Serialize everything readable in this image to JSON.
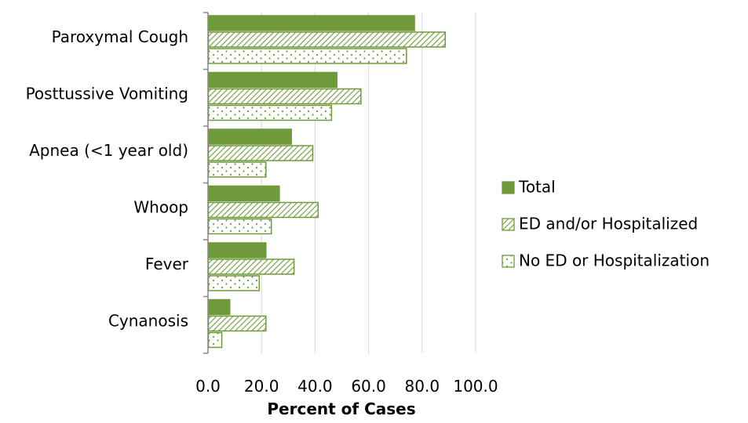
{
  "chart_data": {
    "type": "bar",
    "orientation": "horizontal",
    "categories": [
      "Paroxymal Cough",
      "Posttussive Vomiting",
      "Apnea (<1 year old)",
      "Whoop",
      "Fever",
      "Cynanosis"
    ],
    "series": [
      {
        "name": "Total",
        "values": [
          77.0,
          48.0,
          31.0,
          26.5,
          21.5,
          8.0
        ],
        "pattern": "solid",
        "color": "#6e9a3a"
      },
      {
        "name": "ED and/or Hospitalized",
        "values": [
          88.5,
          57.0,
          39.0,
          41.0,
          32.0,
          21.5
        ],
        "pattern": "diagonal",
        "color": "#6e9a3a"
      },
      {
        "name": "No ED or Hospitalization",
        "values": [
          74.0,
          46.0,
          21.5,
          23.5,
          19.0,
          5.0
        ],
        "pattern": "dotted",
        "color": "#6e9a3a"
      }
    ],
    "xlabel": "Percent of Cases",
    "ylabel": "",
    "xlim": [
      0,
      100
    ],
    "xticks": [
      "0.0",
      "20.0",
      "40.0",
      "60.0",
      "80.0",
      "100.0"
    ],
    "grid": true,
    "legend_position": "right"
  }
}
